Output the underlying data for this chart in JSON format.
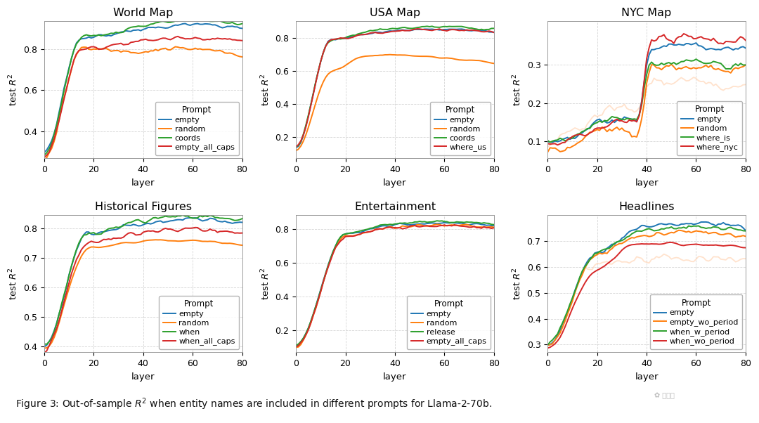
{
  "titles": [
    "World Map",
    "USA Map",
    "NYC Map",
    "Historical Figures",
    "Entertainment",
    "Headlines"
  ],
  "xlabel": "layer",
  "ylabel": "test $R^2$",
  "colors": {
    "blue": "#1f77b4",
    "orange": "#ff7f0e",
    "green": "#2ca02c",
    "red": "#d62728",
    "light_orange": "#ffcba4"
  },
  "legend_labels": {
    "world_map": [
      "empty",
      "random",
      "coords",
      "empty_all_caps"
    ],
    "usa_map": [
      "empty",
      "random",
      "coords",
      "where_us"
    ],
    "nyc_map": [
      "empty",
      "random",
      "where_is",
      "where_nyc"
    ],
    "historical": [
      "empty",
      "random",
      "when",
      "when_all_caps"
    ],
    "entertainment": [
      "empty",
      "random",
      "release",
      "empty_all_caps"
    ],
    "headlines": [
      "empty",
      "empty_wo_period",
      "when_w_period",
      "when_wo_period"
    ]
  },
  "subplot_settings": {
    "world_map": {
      "ylim": [
        0.27,
        0.935
      ],
      "yticks": [
        0.4,
        0.6,
        0.8
      ]
    },
    "usa_map": {
      "ylim": [
        0.07,
        0.9
      ],
      "yticks": [
        0.2,
        0.4,
        0.6,
        0.8
      ]
    },
    "nyc_map": {
      "ylim": [
        0.055,
        0.415
      ],
      "yticks": [
        0.1,
        0.2,
        0.3
      ]
    },
    "historical": {
      "ylim": [
        0.38,
        0.845
      ],
      "yticks": [
        0.4,
        0.5,
        0.6,
        0.7,
        0.8
      ]
    },
    "entertainment": {
      "ylim": [
        0.07,
        0.88
      ],
      "yticks": [
        0.2,
        0.4,
        0.6,
        0.8
      ]
    },
    "headlines": {
      "ylim": [
        0.27,
        0.8
      ],
      "yticks": [
        0.3,
        0.4,
        0.5,
        0.6,
        0.7
      ]
    }
  },
  "figsize": [
    10.8,
    6.02
  ],
  "dpi": 100,
  "background": "#ffffff",
  "grid_color": "#cccccc",
  "caption": "Figure 3: Out-of-sample $R^2$ when entity names are included in different prompts for Llama-2-70b."
}
